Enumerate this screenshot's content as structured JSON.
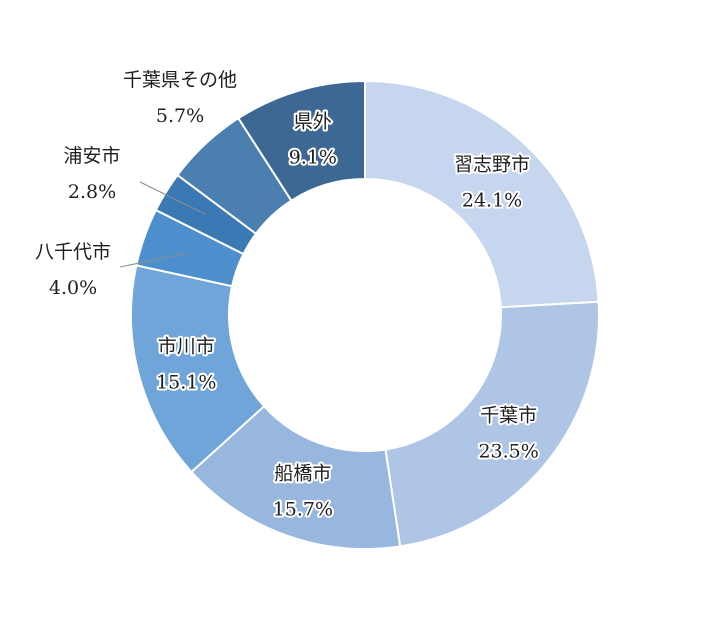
{
  "chart_data": {
    "type": "pie",
    "variant": "donut",
    "title": "",
    "start_angle_deg": 0,
    "direction": "clockwise",
    "slices": [
      {
        "label": "習志野市",
        "value": 24.1,
        "value_label": "24.1%",
        "color": "#c5d6ee",
        "label_position": "inside"
      },
      {
        "label": "千葉市",
        "value": 23.5,
        "value_label": "23.5%",
        "color": "#aec5e6",
        "label_position": "inside"
      },
      {
        "label": "船橋市",
        "value": 15.7,
        "value_label": "15.7%",
        "color": "#98b7df",
        "label_position": "inside"
      },
      {
        "label": "市川市",
        "value": 15.1,
        "value_label": "15.1%",
        "color": "#6fa5d9",
        "label_position": "inside"
      },
      {
        "label": "八千代市",
        "value": 4.0,
        "value_label": "4.0%",
        "color": "#4d8fcc",
        "label_position": "outside"
      },
      {
        "label": "浦安市",
        "value": 2.8,
        "value_label": "2.8%",
        "color": "#3b79b5",
        "label_position": "outside"
      },
      {
        "label": "千葉県その他",
        "value": 5.7,
        "value_label": "5.7%",
        "color": "#4a7fb0",
        "label_position": "outside"
      },
      {
        "label": "県外",
        "value": 9.1,
        "value_label": "9.1%",
        "color": "#3e6894",
        "label_position": "inside"
      }
    ]
  }
}
